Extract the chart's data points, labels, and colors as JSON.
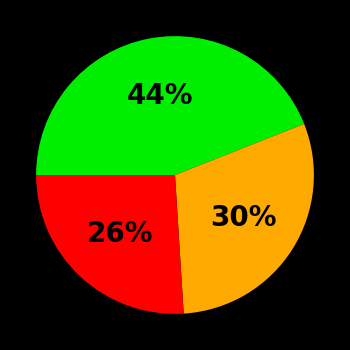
{
  "values": [
    44,
    30,
    26
  ],
  "colors": [
    "#00ee00",
    "#ffaa00",
    "#ff0000"
  ],
  "labels": [
    "44%",
    "30%",
    "26%"
  ],
  "background_color": "#000000",
  "text_color": "#000000",
  "font_size": 20,
  "font_weight": "bold",
  "startangle": 180,
  "counterclock": false,
  "label_r": 0.58
}
